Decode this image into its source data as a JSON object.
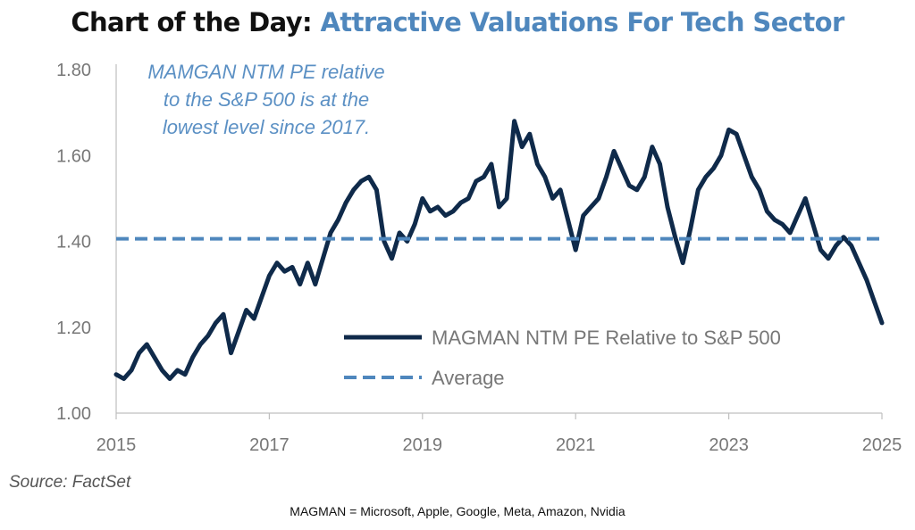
{
  "title": {
    "main": "Chart of the Day:",
    "sub": "Attractive Valuations For Tech Sector"
  },
  "annotation": {
    "lines": [
      "MAMGAN NTM PE relative",
      "to the S&P 500 is at the",
      "lowest level since 2017."
    ]
  },
  "source": "Source: FactSet",
  "footnote": "MAGMAN = Microsoft, Apple, Google, Meta, Amazon, Nvidia",
  "colors": {
    "series": "#0f2a4a",
    "average": "#4f87bd",
    "axis_text": "#777777",
    "annotation": "#5b90c4"
  },
  "chart_data": {
    "type": "line",
    "title": "Chart of the Day: Attractive Valuations For Tech Sector",
    "xlabel": "",
    "ylabel": "",
    "xlim": [
      2015,
      2025
    ],
    "ylim": [
      1.0,
      1.8
    ],
    "x_ticks": [
      "2015",
      "2017",
      "2019",
      "2021",
      "2023",
      "2025"
    ],
    "y_ticks": [
      "1.00",
      "1.20",
      "1.40",
      "1.60",
      "1.80"
    ],
    "grid": false,
    "legend_position": "bottom-right",
    "series": [
      {
        "name": "MAGMAN NTM PE Relative to S&P 500",
        "style": "solid",
        "x": [
          2015.0,
          2015.1,
          2015.2,
          2015.3,
          2015.4,
          2015.5,
          2015.6,
          2015.7,
          2015.8,
          2015.9,
          2016.0,
          2016.1,
          2016.2,
          2016.3,
          2016.4,
          2016.5,
          2016.6,
          2016.7,
          2016.8,
          2016.9,
          2017.0,
          2017.1,
          2017.2,
          2017.3,
          2017.4,
          2017.5,
          2017.6,
          2017.7,
          2017.8,
          2017.9,
          2018.0,
          2018.1,
          2018.2,
          2018.3,
          2018.4,
          2018.5,
          2018.6,
          2018.7,
          2018.8,
          2018.9,
          2019.0,
          2019.1,
          2019.2,
          2019.3,
          2019.4,
          2019.5,
          2019.6,
          2019.7,
          2019.8,
          2019.9,
          2020.0,
          2020.1,
          2020.2,
          2020.3,
          2020.4,
          2020.5,
          2020.6,
          2020.7,
          2020.8,
          2020.9,
          2021.0,
          2021.1,
          2021.2,
          2021.3,
          2021.4,
          2021.5,
          2021.6,
          2021.7,
          2021.8,
          2021.9,
          2022.0,
          2022.1,
          2022.2,
          2022.3,
          2022.4,
          2022.5,
          2022.6,
          2022.7,
          2022.8,
          2022.9,
          2023.0,
          2023.1,
          2023.2,
          2023.3,
          2023.4,
          2023.5,
          2023.6,
          2023.7,
          2023.8,
          2023.9,
          2024.0,
          2024.1,
          2024.2,
          2024.3,
          2024.4,
          2024.5,
          2024.6,
          2024.7,
          2024.8,
          2024.9,
          2025.0
        ],
        "values": [
          1.09,
          1.08,
          1.1,
          1.14,
          1.16,
          1.13,
          1.1,
          1.08,
          1.1,
          1.09,
          1.13,
          1.16,
          1.18,
          1.21,
          1.23,
          1.14,
          1.19,
          1.24,
          1.22,
          1.27,
          1.32,
          1.35,
          1.33,
          1.34,
          1.3,
          1.35,
          1.3,
          1.36,
          1.42,
          1.45,
          1.49,
          1.52,
          1.54,
          1.55,
          1.52,
          1.4,
          1.36,
          1.42,
          1.4,
          1.44,
          1.5,
          1.47,
          1.48,
          1.46,
          1.47,
          1.49,
          1.5,
          1.54,
          1.55,
          1.58,
          1.48,
          1.5,
          1.68,
          1.62,
          1.65,
          1.58,
          1.55,
          1.5,
          1.52,
          1.45,
          1.38,
          1.46,
          1.48,
          1.5,
          1.55,
          1.61,
          1.57,
          1.53,
          1.52,
          1.55,
          1.62,
          1.58,
          1.48,
          1.41,
          1.35,
          1.43,
          1.52,
          1.55,
          1.57,
          1.6,
          1.66,
          1.65,
          1.6,
          1.55,
          1.52,
          1.47,
          1.45,
          1.44,
          1.42,
          1.46,
          1.5,
          1.44,
          1.38,
          1.36,
          1.39,
          1.41,
          1.39,
          1.35,
          1.31,
          1.26,
          1.21
        ]
      },
      {
        "name": "Average",
        "style": "dashed",
        "x": [
          2015,
          2025
        ],
        "values": [
          1.406,
          1.406
        ]
      }
    ]
  }
}
